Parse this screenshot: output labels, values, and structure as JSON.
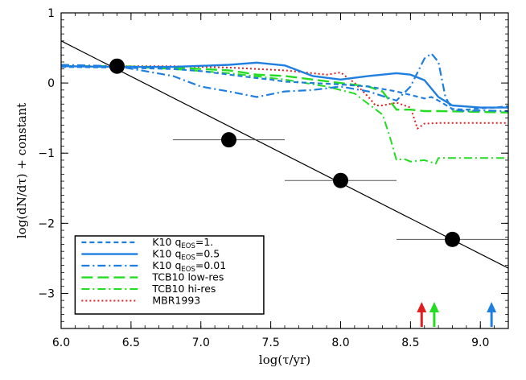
{
  "chart_data": {
    "type": "line",
    "xlabel": "log(τ/yr)",
    "ylabel": "log(dN/dτ) + constant",
    "xlim": [
      6.0,
      9.2
    ],
    "ylim": [
      -3.5,
      1.0
    ],
    "xticks": [
      "6.0",
      "6.5",
      "7.0",
      "7.5",
      "8.0",
      "8.5",
      "9.0"
    ],
    "yticks": [
      "−3",
      "−2",
      "−1",
      "0",
      "1"
    ],
    "grid": false,
    "legend_position": "bottom-left",
    "fit_line": {
      "x": [
        6.0,
        9.2
      ],
      "y": [
        0.6,
        -2.64
      ]
    },
    "points": [
      {
        "x": 6.4,
        "y": 0.24,
        "xerr": [
          6.4,
          6.4
        ]
      },
      {
        "x": 7.2,
        "y": -0.81,
        "xerr": [
          6.8,
          7.6
        ]
      },
      {
        "x": 8.0,
        "y": -1.39,
        "xerr": [
          7.6,
          8.4
        ]
      },
      {
        "x": 8.8,
        "y": -2.23,
        "xerr": [
          8.4,
          9.2
        ]
      }
    ],
    "series": [
      {
        "name": "K10 q",
        "name_sub": "EOS",
        "name_suffix": "=1.",
        "color": "#1f7fe0",
        "dash": "6,4",
        "width": 2.2,
        "x": [
          6.0,
          6.4,
          6.8,
          7.0,
          7.2,
          7.4,
          7.5,
          7.6,
          7.8,
          8.0,
          8.2,
          8.4,
          8.6,
          8.65,
          8.7,
          8.8,
          8.9,
          9.0,
          9.1,
          9.2
        ],
        "y": [
          0.23,
          0.22,
          0.2,
          0.17,
          0.12,
          0.07,
          0.05,
          0.02,
          0.0,
          -0.02,
          -0.05,
          -0.12,
          -0.22,
          -0.2,
          -0.25,
          -0.37,
          -0.38,
          -0.36,
          -0.35,
          -0.33
        ]
      },
      {
        "name": "K10 q",
        "name_sub": "EOS",
        "name_suffix": "=0.5",
        "color": "#1f7fe0",
        "dash": "",
        "width": 2.4,
        "x": [
          6.0,
          6.4,
          6.8,
          7.2,
          7.4,
          7.6,
          7.8,
          8.0,
          8.2,
          8.4,
          8.5,
          8.6,
          8.7,
          8.8,
          9.0,
          9.2
        ],
        "y": [
          0.24,
          0.23,
          0.23,
          0.26,
          0.29,
          0.25,
          0.1,
          0.05,
          0.1,
          0.14,
          0.12,
          0.04,
          -0.2,
          -0.32,
          -0.35,
          -0.35
        ]
      },
      {
        "name": "K10 q",
        "name_sub": "EOS",
        "name_suffix": "=0.01",
        "color": "#1f7fe0",
        "dash": "10,4,2,4",
        "width": 2.2,
        "x": [
          6.0,
          6.4,
          6.8,
          7.0,
          7.2,
          7.4,
          7.6,
          7.8,
          8.0,
          8.2,
          8.4,
          8.5,
          8.6,
          8.65,
          8.7,
          8.75,
          8.8,
          8.9,
          9.0,
          9.2
        ],
        "y": [
          0.26,
          0.24,
          0.1,
          -0.05,
          -0.12,
          -0.2,
          -0.12,
          -0.1,
          -0.05,
          -0.12,
          -0.25,
          -0.05,
          0.35,
          0.42,
          0.3,
          -0.2,
          -0.38,
          -0.4,
          -0.39,
          -0.4
        ]
      },
      {
        "name": "TCB10 low-res",
        "color": "#22dd22",
        "dash": "14,6",
        "width": 2.4,
        "x": [
          6.0,
          6.4,
          6.8,
          7.2,
          7.4,
          7.6,
          7.8,
          8.0,
          8.2,
          8.3,
          8.4,
          8.5,
          8.6,
          8.7,
          9.2
        ],
        "y": [
          0.24,
          0.24,
          0.22,
          0.18,
          0.12,
          0.1,
          0.05,
          0.0,
          -0.05,
          -0.12,
          -0.38,
          -0.38,
          -0.4,
          -0.4,
          -0.42
        ]
      },
      {
        "name": "TCB10 hi-res",
        "color": "#22dd22",
        "dash": "10,4,2,4",
        "width": 2.0,
        "x": [
          6.0,
          6.4,
          6.8,
          7.2,
          7.6,
          7.9,
          8.1,
          8.3,
          8.35,
          8.4,
          8.45,
          8.5,
          8.6,
          8.68,
          8.7,
          9.2
        ],
        "y": [
          0.24,
          0.24,
          0.2,
          0.14,
          0.05,
          -0.05,
          -0.15,
          -0.45,
          -0.75,
          -1.1,
          -1.08,
          -1.12,
          -1.1,
          -1.15,
          -1.07,
          -1.07
        ]
      },
      {
        "name": "MBR1993",
        "color": "#e02020",
        "dash": "2,3",
        "width": 2.0,
        "x": [
          6.0,
          6.4,
          6.8,
          7.2,
          7.6,
          7.9,
          8.0,
          8.1,
          8.2,
          8.25,
          8.3,
          8.4,
          8.5,
          8.55,
          8.6,
          8.7,
          9.2
        ],
        "y": [
          0.24,
          0.24,
          0.24,
          0.22,
          0.18,
          0.12,
          0.15,
          0.0,
          -0.2,
          -0.32,
          -0.32,
          -0.28,
          -0.35,
          -0.65,
          -0.58,
          -0.57,
          -0.57
        ]
      }
    ],
    "arrows": [
      {
        "x": 8.58,
        "color": "#e02020"
      },
      {
        "x": 8.67,
        "color": "#22dd22"
      },
      {
        "x": 9.08,
        "color": "#1f7fe0"
      }
    ]
  }
}
